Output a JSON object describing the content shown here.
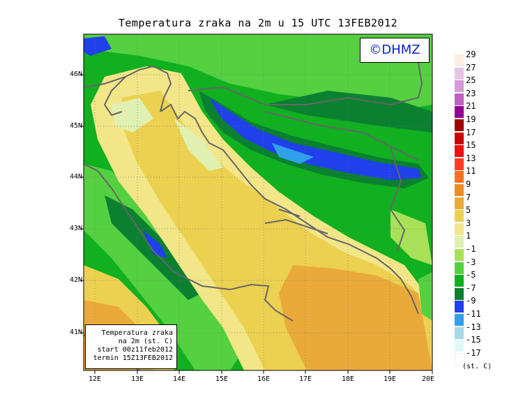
{
  "title": "Temperatura zraka na 2m u 15 UTC 13FEB2012",
  "logo": "©DHMZ",
  "info_box": {
    "line1": "Temperatura zraka",
    "line2": "na 2m (st. C)",
    "line3": "start 00z11feb2012",
    "line4": "termin 15Z13FEB2012"
  },
  "lat_labels": [
    "46N",
    "45N",
    "44N",
    "43N",
    "42N",
    "41N"
  ],
  "lon_labels": [
    "12E",
    "13E",
    "14E",
    "15E",
    "16E",
    "17E",
    "18E",
    "19E",
    "20E"
  ],
  "legend": {
    "unit": "(st. C)",
    "bins": [
      {
        "label": "29",
        "color": "#fbeee0"
      },
      {
        "label": "27",
        "color": "#e6c4e4"
      },
      {
        "label": "25",
        "color": "#d69ad6"
      },
      {
        "label": "23",
        "color": "#c060c0"
      },
      {
        "label": "21",
        "color": "#900090"
      },
      {
        "label": "19",
        "color": "#a00000"
      },
      {
        "label": "17",
        "color": "#cc0000"
      },
      {
        "label": "15",
        "color": "#ee1010"
      },
      {
        "label": "13",
        "color": "#ff3c20"
      },
      {
        "label": "11",
        "color": "#ff7020"
      },
      {
        "label": "9",
        "color": "#ec8e22"
      },
      {
        "label": "7",
        "color": "#eaaa3a"
      },
      {
        "label": "5",
        "color": "#ecd050"
      },
      {
        "label": "3",
        "color": "#f2e688"
      },
      {
        "label": "1",
        "color": "#e0f0b0"
      },
      {
        "label": "-1",
        "color": "#a8e058"
      },
      {
        "label": "-3",
        "color": "#54d040"
      },
      {
        "label": "-5",
        "color": "#10b020"
      },
      {
        "label": "-7",
        "color": "#0a8030"
      },
      {
        "label": "-9",
        "color": "#2040ec"
      },
      {
        "label": "-11",
        "color": "#30a0ec"
      },
      {
        "label": "-13",
        "color": "#a8d8e8"
      },
      {
        "label": "-15",
        "color": "#e0f8f8"
      },
      {
        "label": "-17",
        "color": "#ffffff"
      }
    ]
  }
}
